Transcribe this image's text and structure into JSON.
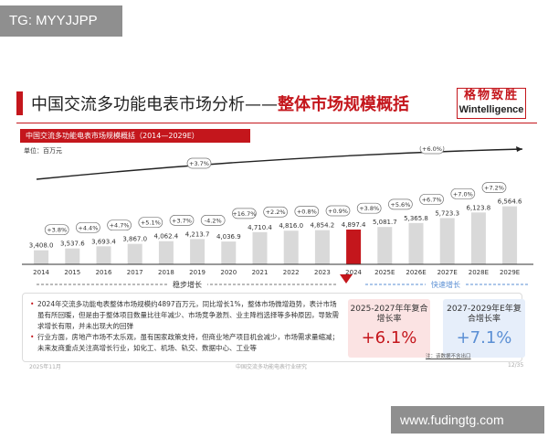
{
  "overlay": {
    "tg": "TG: MYYJJPP",
    "url": "www.fudingtg.com"
  },
  "header": {
    "title_prefix": "中国交流多功能电表市场分析——",
    "title_highlight": "整体市场规模概括",
    "logo_cn": "格物致胜",
    "logo_en": "Wintelligence"
  },
  "chart_data": {
    "type": "bar",
    "title": "中国交流多功能电表市场规模概括（2014—2029E）",
    "unit": "单位：百万元",
    "categories": [
      "2014",
      "2015",
      "2016",
      "2017",
      "2018",
      "2019",
      "2020",
      "2021",
      "2022",
      "2023",
      "2024",
      "2025E",
      "2026E",
      "2027E",
      "2028E",
      "2029E"
    ],
    "values": [
      3408.0,
      3537.6,
      3693.4,
      3867.0,
      4062.4,
      4213.7,
      4036.9,
      4710.4,
      4816.0,
      4854.2,
      4897.4,
      5081.7,
      5365.8,
      5723.3,
      6123.8,
      6564.6
    ],
    "value_labels": [
      "3,408.0",
      "3,537.6",
      "3,693.4",
      "3,867.0",
      "4,062.4",
      "4,213.7",
      "4,036.9",
      "4,710.4",
      "4,816.0",
      "4,854.2",
      "4,897.4",
      "5,081.7",
      "5,365.8",
      "5,723.3",
      "6,123.8",
      "6,564.6"
    ],
    "growth_labels": [
      "+3.8%",
      "+4.4%",
      "+4.7%",
      "+5.1%",
      "+3.7%",
      "-4.2%",
      "+16.7%",
      "+2.2%",
      "+0.8%",
      "+0.9%",
      "+3.8%",
      "+5.6%",
      "+6.7%",
      "+7.0%",
      "+7.2%"
    ],
    "highlight_index": 10,
    "colors": {
      "bar": "#d9d9d9",
      "highlight": "#c4161c",
      "axis": "#333333",
      "accent": "#c4161c",
      "forecast_arrow": "#5b8fd4"
    },
    "trend_labels": {
      "hist": "+3.7%",
      "forecast": "+6.0%"
    },
    "phases": {
      "stable": "稳步增长",
      "fast": "快速增长"
    }
  },
  "summary": {
    "bullets": [
      "2024年交流多功能电表整体市场规模约4897百万元，同比增长1%，整体市场微增趋势，表计市场虽有所回暖，但是由于整体项目数量比往年减少、市场竞争激烈、业主降档选择等多种原因，导致需求增长有限，并未出现大的回弹",
      "行业方面，房地产市场不太乐观，虽有国家政策支持，但商业地产项目机会减少，市场需求量缩减；未来友商重点关注高增长行业，如化工、机场、轨交、数据中心、工业等"
    ],
    "cagr1_label": "2025-2027年年复合增长率",
    "cagr1_value": "+6.1%",
    "cagr2_label": "2027-2029年E年复合增长率",
    "cagr2_value": "+7.1%",
    "note": "注：该数据不含出口"
  },
  "footer": {
    "left": "2025年11月",
    "center": "中国交流多功能电表行业研究",
    "right": "12/35"
  }
}
